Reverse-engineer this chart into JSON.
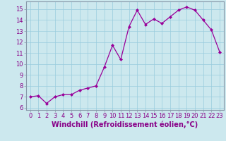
{
  "x": [
    0,
    1,
    2,
    3,
    4,
    5,
    6,
    7,
    8,
    9,
    10,
    11,
    12,
    13,
    14,
    15,
    16,
    17,
    18,
    19,
    20,
    21,
    22,
    23
  ],
  "y": [
    7.0,
    7.1,
    6.4,
    7.0,
    7.2,
    7.2,
    7.6,
    7.8,
    8.0,
    9.7,
    11.7,
    10.4,
    13.4,
    14.9,
    13.6,
    14.1,
    13.7,
    14.3,
    14.9,
    15.2,
    14.9,
    14.0,
    13.1,
    11.1
  ],
  "xlabel": "Windchill (Refroidissement éolien,°C)",
  "ylim": [
    5.8,
    15.7
  ],
  "xlim": [
    -0.5,
    23.5
  ],
  "yticks": [
    6,
    7,
    8,
    9,
    10,
    11,
    12,
    13,
    14,
    15
  ],
  "xticks": [
    0,
    1,
    2,
    3,
    4,
    5,
    6,
    7,
    8,
    9,
    10,
    11,
    12,
    13,
    14,
    15,
    16,
    17,
    18,
    19,
    20,
    21,
    22,
    23
  ],
  "line_color": "#990099",
  "marker_color": "#990099",
  "bg_color": "#cce8ee",
  "grid_color": "#99ccdd",
  "tick_label_color": "#880088",
  "xlabel_color": "#880088",
  "xlabel_fontsize": 7,
  "tick_fontsize": 6,
  "spine_color": "#8899aa"
}
